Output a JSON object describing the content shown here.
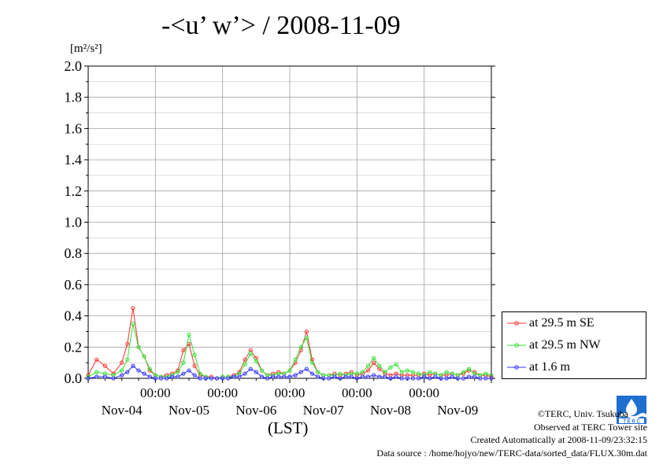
{
  "title": "-<u’ w’> / 2008-11-09",
  "y_unit": "[m²/s²]",
  "x_axis_label": "(LST)",
  "credits": {
    "copyright": "©TERC, Univ. Tsukuba",
    "site": "Observed at TERC Tower site",
    "created": "Created Automatically at 2008-11-09/23:32:15",
    "source": "Data source : /home/hojyo/new/TERC-data/sorted_data/FLUX.30m.dat"
  },
  "chart_data": {
    "type": "line",
    "title": "-<u’ w’> / 2008-11-09",
    "xlabel": "(LST)",
    "ylabel": "[m²/s²]",
    "ylim": [
      0,
      2.0
    ],
    "yticks": [
      0.0,
      0.2,
      0.4,
      0.6,
      0.8,
      1.0,
      1.2,
      1.4,
      1.6,
      1.8,
      2.0
    ],
    "ytick_labels": [
      "0.0",
      "0.2",
      "0.4",
      "0.6",
      "0.8",
      "1.0",
      "1.2",
      "1.4",
      "1.6",
      "1.8",
      "2.0"
    ],
    "xlim_hours": [
      0,
      144
    ],
    "x_tick_time_labels": [
      "00:00",
      "00:00",
      "00:00",
      "00:00",
      "00:00"
    ],
    "x_tick_date_labels": [
      "Nov-04",
      "Nov-05",
      "Nov-06",
      "Nov-07",
      "Nov-08",
      "Nov-09"
    ],
    "grid": true,
    "legend_position": "right-bottom",
    "series": [
      {
        "name": "at 29.5 m SE",
        "color": "#ff3030",
        "x": [
          0,
          3,
          6,
          9,
          12,
          14,
          16,
          18,
          20,
          22,
          24,
          26,
          28,
          30,
          32,
          34,
          36,
          38,
          40,
          42,
          44,
          46,
          48,
          50,
          52,
          54,
          56,
          58,
          60,
          62,
          64,
          66,
          68,
          70,
          72,
          74,
          76,
          78,
          80,
          82,
          84,
          86,
          88,
          90,
          92,
          94,
          96,
          98,
          100,
          102,
          104,
          106,
          108,
          110,
          112,
          114,
          116,
          118,
          120,
          122,
          124,
          126,
          128,
          130,
          132,
          134,
          136,
          138,
          140,
          142,
          144
        ],
        "y": [
          0.02,
          0.12,
          0.08,
          0.03,
          0.1,
          0.22,
          0.45,
          0.2,
          0.14,
          0.05,
          0.02,
          0.01,
          0.02,
          0.03,
          0.05,
          0.18,
          0.22,
          0.08,
          0.02,
          0.01,
          0.01,
          0.0,
          0.01,
          0.01,
          0.02,
          0.04,
          0.12,
          0.18,
          0.13,
          0.05,
          0.02,
          0.03,
          0.04,
          0.03,
          0.05,
          0.1,
          0.18,
          0.3,
          0.12,
          0.04,
          0.02,
          0.02,
          0.03,
          0.02,
          0.03,
          0.04,
          0.02,
          0.03,
          0.05,
          0.1,
          0.06,
          0.03,
          0.02,
          0.03,
          0.02,
          0.02,
          0.02,
          0.02,
          0.03,
          0.02,
          0.03,
          0.02,
          0.02,
          0.03,
          0.02,
          0.03,
          0.05,
          0.04,
          0.02,
          0.02,
          0.01
        ]
      },
      {
        "name": "at 29.5 m NW",
        "color": "#30e030",
        "x": [
          0,
          3,
          6,
          9,
          12,
          14,
          16,
          18,
          20,
          22,
          24,
          26,
          28,
          30,
          32,
          34,
          36,
          38,
          40,
          42,
          44,
          46,
          48,
          50,
          52,
          54,
          56,
          58,
          60,
          62,
          64,
          66,
          68,
          70,
          72,
          74,
          76,
          78,
          80,
          82,
          84,
          86,
          88,
          90,
          92,
          94,
          96,
          98,
          100,
          102,
          104,
          106,
          108,
          110,
          112,
          114,
          116,
          118,
          120,
          122,
          124,
          126,
          128,
          130,
          132,
          134,
          136,
          138,
          140,
          142,
          144
        ],
        "y": [
          0.01,
          0.04,
          0.03,
          0.02,
          0.05,
          0.12,
          0.35,
          0.2,
          0.14,
          0.06,
          0.02,
          0.01,
          0.01,
          0.02,
          0.04,
          0.1,
          0.28,
          0.15,
          0.03,
          0.01,
          0.0,
          0.0,
          0.01,
          0.01,
          0.01,
          0.03,
          0.09,
          0.16,
          0.11,
          0.05,
          0.02,
          0.02,
          0.03,
          0.03,
          0.05,
          0.12,
          0.2,
          0.26,
          0.1,
          0.04,
          0.02,
          0.02,
          0.02,
          0.03,
          0.02,
          0.03,
          0.03,
          0.04,
          0.08,
          0.13,
          0.08,
          0.04,
          0.07,
          0.09,
          0.04,
          0.05,
          0.04,
          0.03,
          0.02,
          0.04,
          0.03,
          0.02,
          0.04,
          0.03,
          0.02,
          0.04,
          0.06,
          0.03,
          0.02,
          0.03,
          0.02
        ]
      },
      {
        "name": "at 1.6 m",
        "color": "#3030ff",
        "x": [
          0,
          3,
          6,
          9,
          12,
          14,
          16,
          18,
          20,
          22,
          24,
          26,
          28,
          30,
          32,
          34,
          36,
          38,
          40,
          42,
          44,
          46,
          48,
          50,
          52,
          54,
          56,
          58,
          60,
          62,
          64,
          66,
          68,
          70,
          72,
          74,
          76,
          78,
          80,
          82,
          84,
          86,
          88,
          90,
          92,
          94,
          96,
          98,
          100,
          102,
          104,
          106,
          108,
          110,
          112,
          114,
          116,
          118,
          120,
          122,
          124,
          126,
          128,
          130,
          132,
          134,
          136,
          138,
          140,
          142,
          144
        ],
        "y": [
          0.0,
          0.01,
          0.01,
          0.0,
          0.02,
          0.04,
          0.08,
          0.05,
          0.03,
          0.01,
          0.0,
          0.0,
          0.0,
          0.01,
          0.01,
          0.03,
          0.05,
          0.02,
          0.0,
          0.0,
          0.0,
          0.0,
          0.0,
          0.0,
          0.01,
          0.01,
          0.03,
          0.06,
          0.04,
          0.01,
          0.0,
          0.01,
          0.01,
          0.01,
          0.01,
          0.02,
          0.04,
          0.06,
          0.03,
          0.01,
          0.0,
          0.0,
          0.01,
          0.0,
          0.01,
          0.01,
          0.0,
          0.01,
          0.01,
          0.02,
          0.01,
          0.01,
          0.0,
          0.01,
          0.0,
          0.0,
          0.0,
          0.0,
          0.01,
          0.0,
          0.01,
          0.0,
          0.0,
          0.01,
          0.0,
          0.0,
          0.01,
          0.01,
          0.0,
          0.0,
          0.0
        ]
      }
    ]
  }
}
